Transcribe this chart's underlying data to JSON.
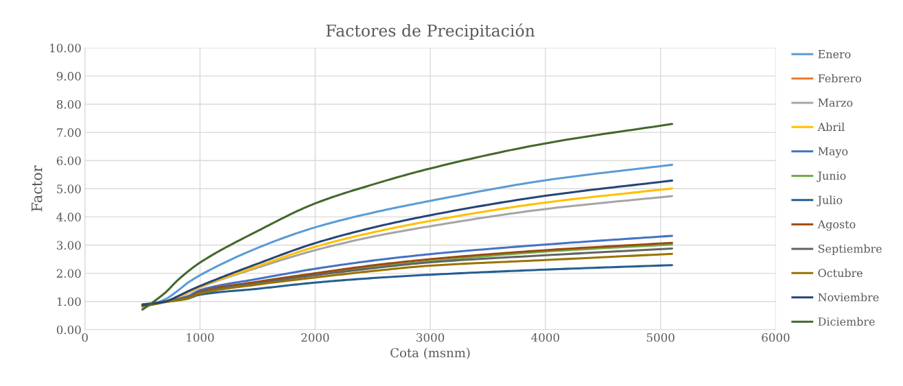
{
  "chart_data": {
    "type": "line",
    "title": "Factores de Precipitación",
    "xlabel": "Cota (msnm)",
    "ylabel": "Factor",
    "x": [
      500,
      600,
      700,
      800,
      900,
      1000,
      1500,
      2000,
      2500,
      3000,
      4000,
      5100
    ],
    "xlim": [
      0,
      6000
    ],
    "xticks": [
      0,
      1000,
      2000,
      3000,
      4000,
      5000,
      6000
    ],
    "ylim": [
      0,
      10
    ],
    "yticks": [
      {
        "value": 0,
        "label": "0.00"
      },
      {
        "value": 1,
        "label": "1.00"
      },
      {
        "value": 2,
        "label": "2.00"
      },
      {
        "value": 3,
        "label": "3.00"
      },
      {
        "value": 4,
        "label": "4.00"
      },
      {
        "value": 5,
        "label": "5.00"
      },
      {
        "value": 6,
        "label": "6.00"
      },
      {
        "value": 7,
        "label": "7.00"
      },
      {
        "value": 8,
        "label": "8.00"
      },
      {
        "value": 9,
        "label": "9.00"
      },
      {
        "value": 10,
        "label": "10.00"
      }
    ],
    "grid": true,
    "legend": "right",
    "marker": "none",
    "line_style": "solid",
    "series": [
      {
        "name": "Enero",
        "color": "#5b9bd5",
        "values": [
          0.78,
          0.92,
          1.08,
          1.36,
          1.68,
          1.93,
          2.9,
          3.63,
          4.15,
          4.57,
          5.3,
          5.85
        ]
      },
      {
        "name": "Febrero",
        "color": "#ed7d31",
        "values": [
          null,
          null,
          null,
          null,
          null,
          null,
          null,
          null,
          null,
          null,
          null,
          null
        ]
      },
      {
        "name": "Marzo",
        "color": "#a5a5a5",
        "values": [
          0.8,
          0.9,
          1.0,
          1.13,
          1.31,
          1.5,
          2.2,
          2.82,
          3.3,
          3.67,
          4.28,
          4.74
        ]
      },
      {
        "name": "Abril",
        "color": "#ffc000",
        "values": [
          0.8,
          0.9,
          1.0,
          1.14,
          1.33,
          1.52,
          2.25,
          2.94,
          3.45,
          3.86,
          4.51,
          5.01
        ]
      },
      {
        "name": "Mayo",
        "color": "#4472c4",
        "values": [
          0.85,
          0.92,
          1.0,
          1.08,
          1.2,
          1.4,
          1.8,
          2.16,
          2.45,
          2.68,
          3.02,
          3.33
        ]
      },
      {
        "name": "Junio",
        "color": "#70ad47",
        "values": [
          0.84,
          0.9,
          0.98,
          1.03,
          1.1,
          1.28,
          1.66,
          1.95,
          2.22,
          2.43,
          2.77,
          3.02
        ]
      },
      {
        "name": "Julio",
        "color": "#255e91",
        "values": [
          0.9,
          0.94,
          1.0,
          1.05,
          1.12,
          1.24,
          1.45,
          1.67,
          1.83,
          1.95,
          2.13,
          2.29
        ]
      },
      {
        "name": "Agosto",
        "color": "#9e480e",
        "values": [
          0.86,
          0.92,
          1.0,
          1.06,
          1.15,
          1.35,
          1.7,
          2.0,
          2.28,
          2.5,
          2.82,
          3.08
        ]
      },
      {
        "name": "Septiembre",
        "color": "#636363",
        "values": [
          0.88,
          0.93,
          1.0,
          1.06,
          1.14,
          1.32,
          1.65,
          1.93,
          2.18,
          2.39,
          2.64,
          2.88
        ]
      },
      {
        "name": "Octubre",
        "color": "#997300",
        "values": [
          0.84,
          0.9,
          0.98,
          1.04,
          1.12,
          1.28,
          1.6,
          1.85,
          2.08,
          2.27,
          2.47,
          2.69
        ]
      },
      {
        "name": "Noviembre",
        "color": "#264478",
        "values": [
          0.87,
          0.93,
          1.0,
          1.17,
          1.37,
          1.55,
          2.34,
          3.07,
          3.62,
          4.06,
          4.75,
          5.29
        ]
      },
      {
        "name": "Diciembre",
        "color": "#43682b",
        "values": [
          0.71,
          1.0,
          1.32,
          1.73,
          2.08,
          2.38,
          3.5,
          4.48,
          5.15,
          5.72,
          6.61,
          7.3
        ]
      }
    ]
  }
}
